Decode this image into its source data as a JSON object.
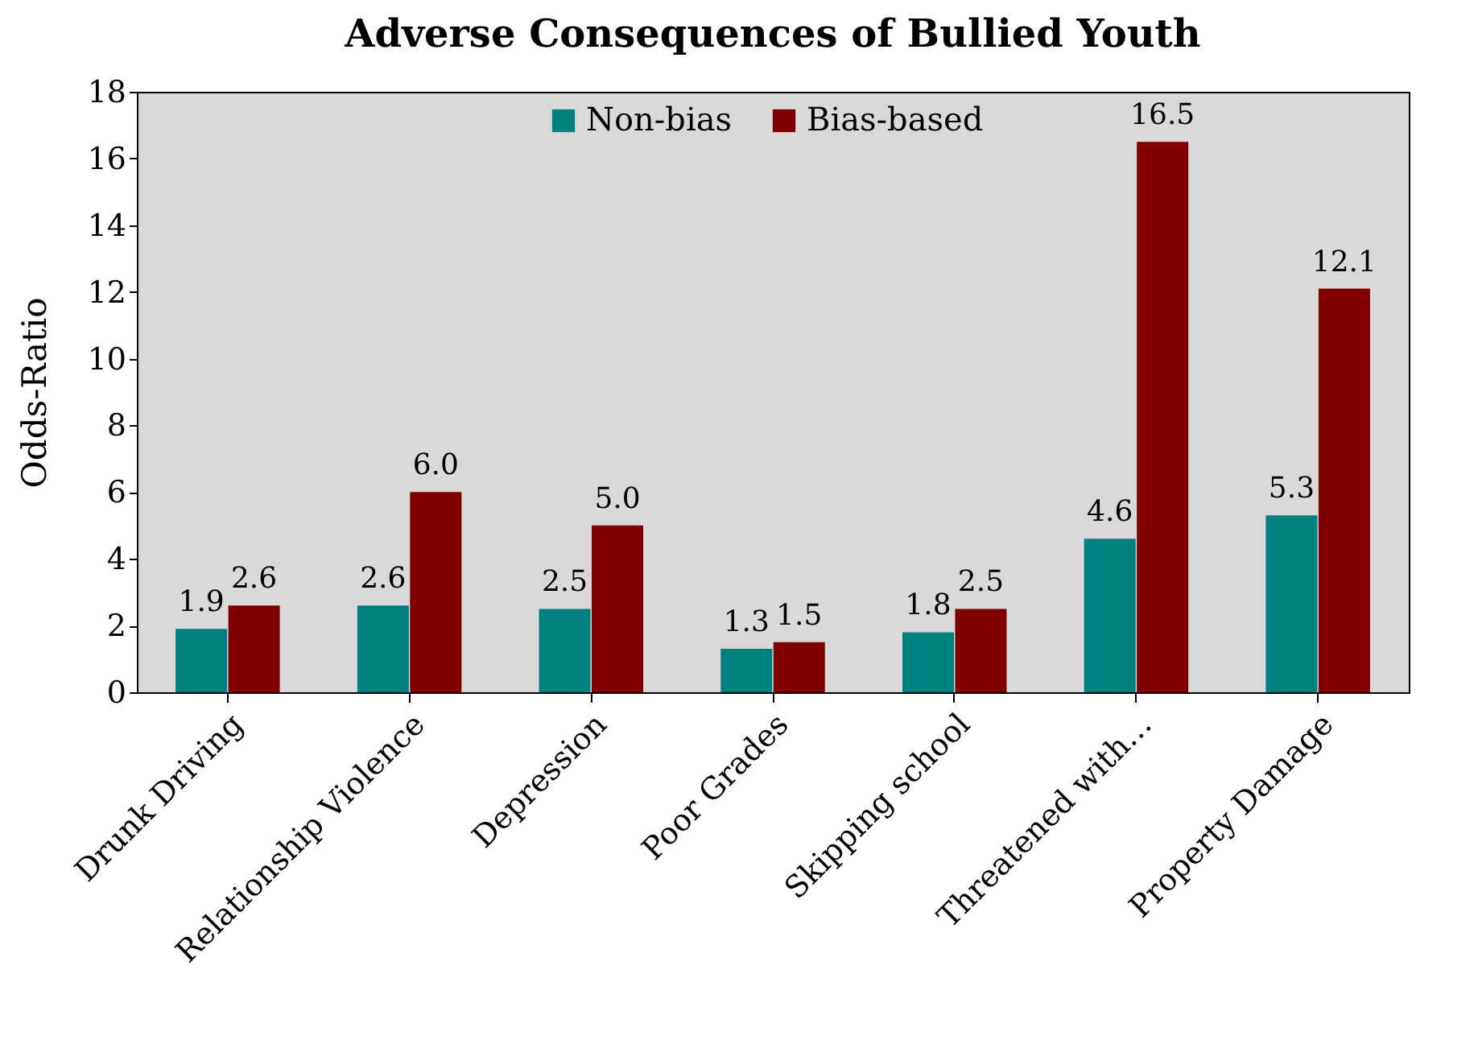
{
  "chart_data": {
    "type": "bar",
    "title": "Adverse Consequences of Bullied Youth",
    "ylabel": "Odds-Ratio",
    "categories": [
      "Drunk Driving",
      "Relationship Violence",
      "Depression",
      "Poor Grades",
      "Skipping school",
      "Threatened with…",
      "Property Damage"
    ],
    "series": [
      {
        "name": "Non-bias",
        "color": "#008080",
        "values": [
          1.9,
          2.6,
          2.5,
          1.3,
          1.8,
          4.6,
          5.3
        ],
        "value_labels": [
          "1.9",
          "2.6",
          "2.5",
          "1.3",
          "1.8",
          "4.6",
          "5.3"
        ]
      },
      {
        "name": "Bias-based",
        "color": "#800000",
        "values": [
          2.6,
          6.0,
          5.0,
          1.5,
          2.5,
          16.5,
          12.1
        ],
        "value_labels": [
          "2.6",
          "6.0",
          "5.0",
          "1.5",
          "2.5",
          "16.5",
          "12.1"
        ]
      }
    ],
    "ylim": [
      0,
      18
    ],
    "yticks": [
      0,
      2,
      4,
      6,
      8,
      10,
      12,
      14,
      16,
      18
    ],
    "grid": false,
    "legend": "top"
  }
}
